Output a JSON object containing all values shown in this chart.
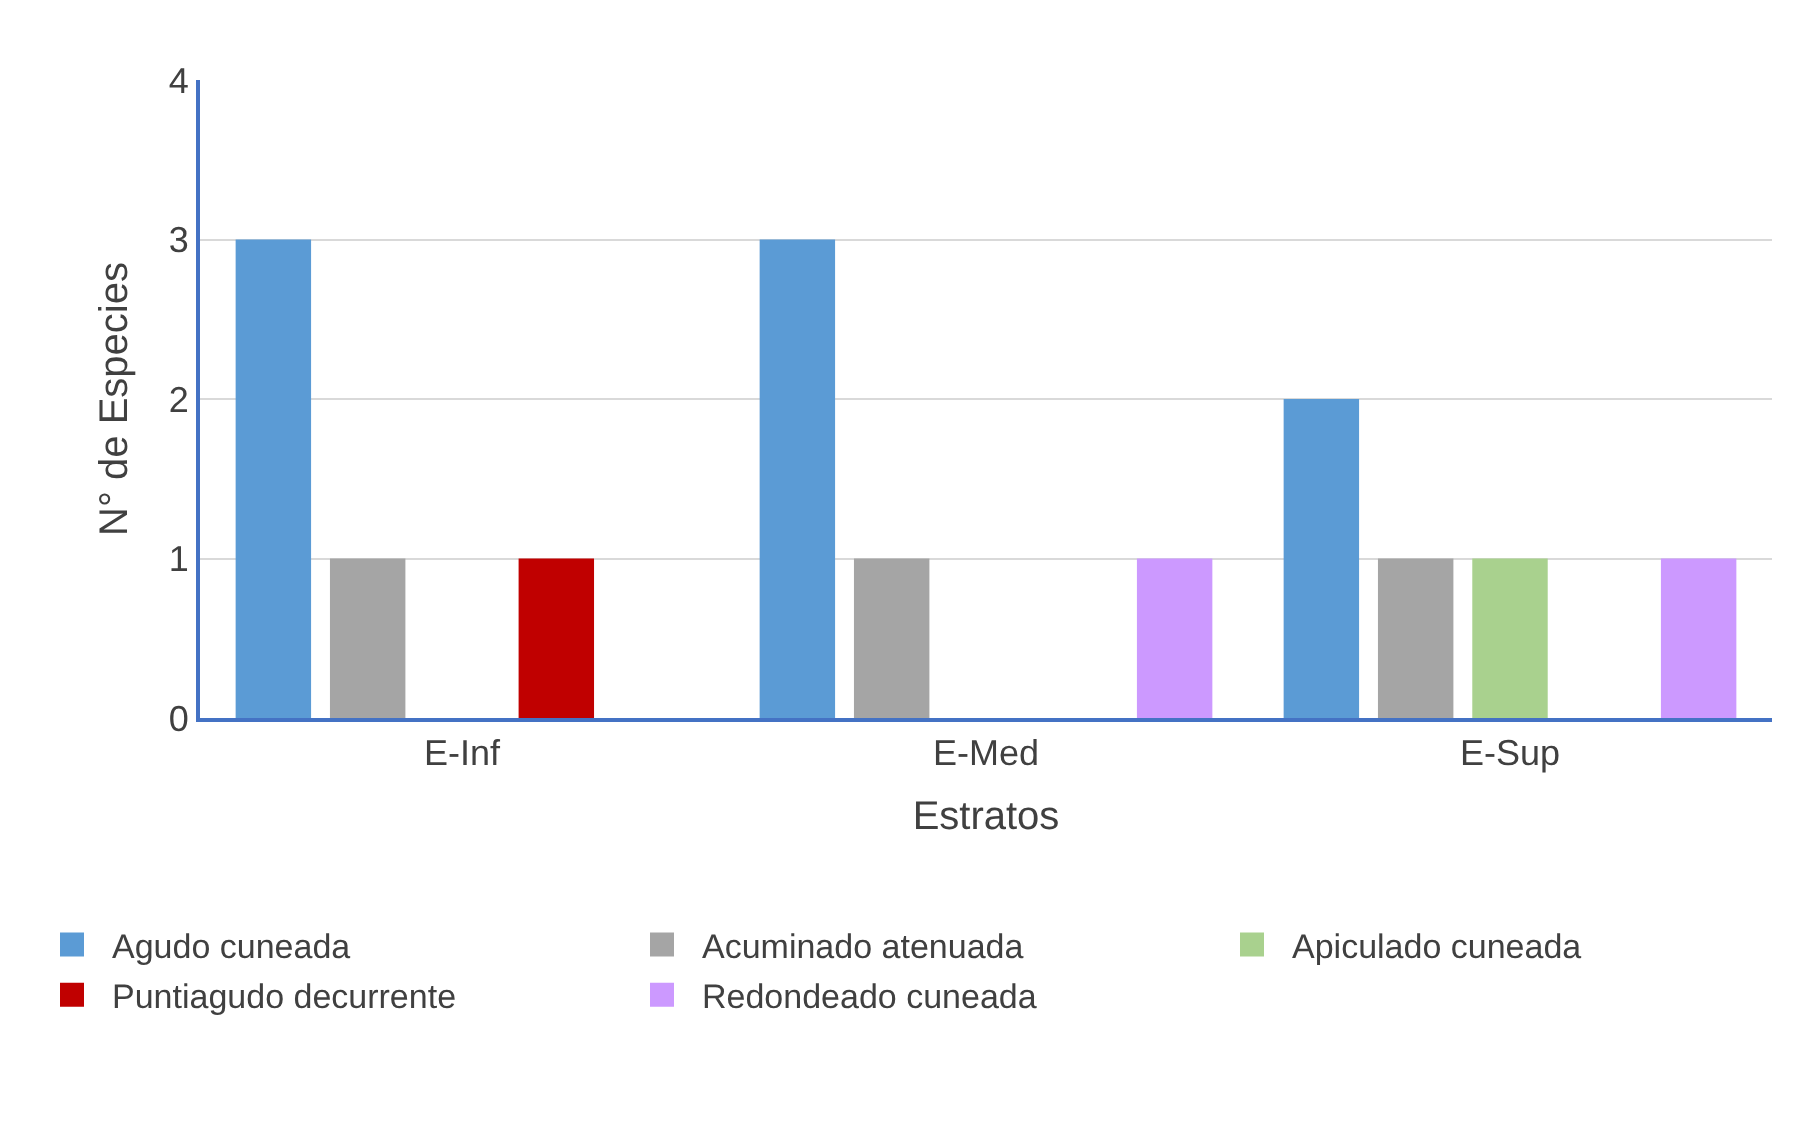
{
  "chart_data": {
    "type": "bar",
    "xlabel": "Estratos",
    "ylabel": "N° de Especies",
    "categories": [
      "E-Inf",
      "E-Med",
      "E-Sup"
    ],
    "series": [
      {
        "name": "Agudo cuneada",
        "color": "#5b9bd5",
        "values": [
          3,
          3,
          2
        ]
      },
      {
        "name": "Acuminado atenuada",
        "color": "#a5a5a5",
        "values": [
          1,
          1,
          1
        ]
      },
      {
        "name": "Apiculado cuneada",
        "color": "#a9d18e",
        "values": [
          0,
          0,
          1
        ]
      },
      {
        "name": "Puntiagudo decurrente",
        "color": "#c00000",
        "values": [
          1,
          0,
          0
        ]
      },
      {
        "name": "Redondeado cuneada",
        "color": "#cc99ff",
        "values": [
          0,
          1,
          1
        ]
      }
    ],
    "ylim": [
      0,
      4
    ],
    "yticks": [
      0,
      1,
      2,
      3,
      4
    ],
    "grid": "y",
    "legend": "bottom"
  }
}
